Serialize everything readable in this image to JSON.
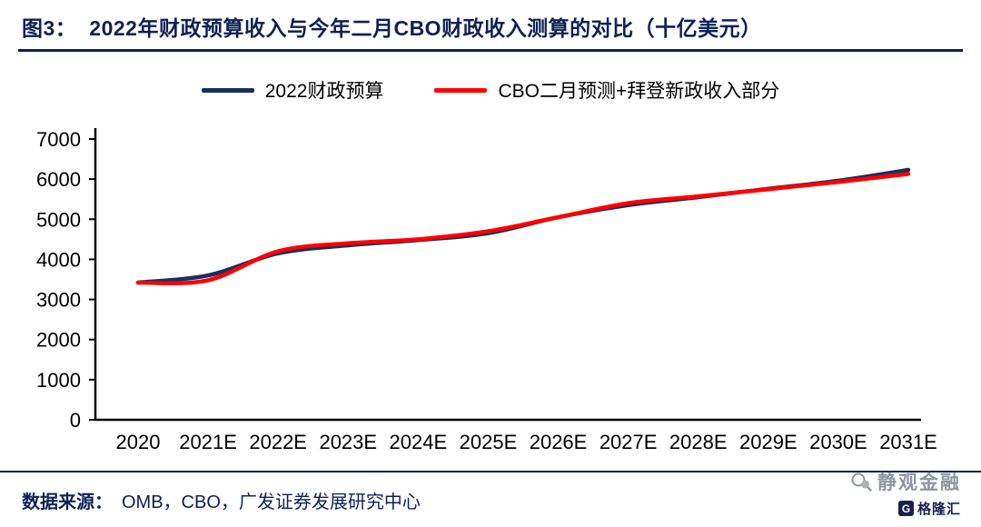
{
  "header": {
    "figure_label": "图3：",
    "title": "2022年财政预算收入与今年二月CBO财政收入测算的对比（十亿美元）"
  },
  "chart_data": {
    "type": "line",
    "title": "2022年财政预算收入与今年二月CBO财政收入测算的对比（十亿美元）",
    "categories": [
      "2020",
      "2021E",
      "2022E",
      "2023E",
      "2024E",
      "2025E",
      "2026E",
      "2027E",
      "2028E",
      "2029E",
      "2030E",
      "2031E"
    ],
    "series": [
      {
        "name": "2022财政预算",
        "color": "#16305f",
        "values": [
          3420,
          3600,
          4150,
          4350,
          4480,
          4650,
          5050,
          5350,
          5550,
          5760,
          5960,
          6230
        ]
      },
      {
        "name": "CBO二月预测+拜登新政收入部分",
        "color": "#ff0000",
        "values": [
          3420,
          3480,
          4200,
          4400,
          4500,
          4700,
          5050,
          5400,
          5570,
          5750,
          5930,
          6130
        ]
      }
    ],
    "ylim": [
      0,
      7000
    ],
    "yticks": [
      0,
      1000,
      2000,
      3000,
      4000,
      5000,
      6000,
      7000
    ],
    "grid": false,
    "legend_position": "top",
    "xlabel": "",
    "ylabel": "",
    "unit": "十亿美元"
  },
  "footer": {
    "source_label": "数据来源：",
    "source_text": "OMB，CBO，广发证券发展研究中心",
    "watermark_text": "静观金融",
    "logo_letter": "G",
    "logo_text": "格隆汇"
  },
  "colors": {
    "navy": "#0c2155",
    "blue_line": "#16305f",
    "red_line": "#ff0000",
    "axis": "#000000",
    "watermark_gray": "#8f959e"
  }
}
